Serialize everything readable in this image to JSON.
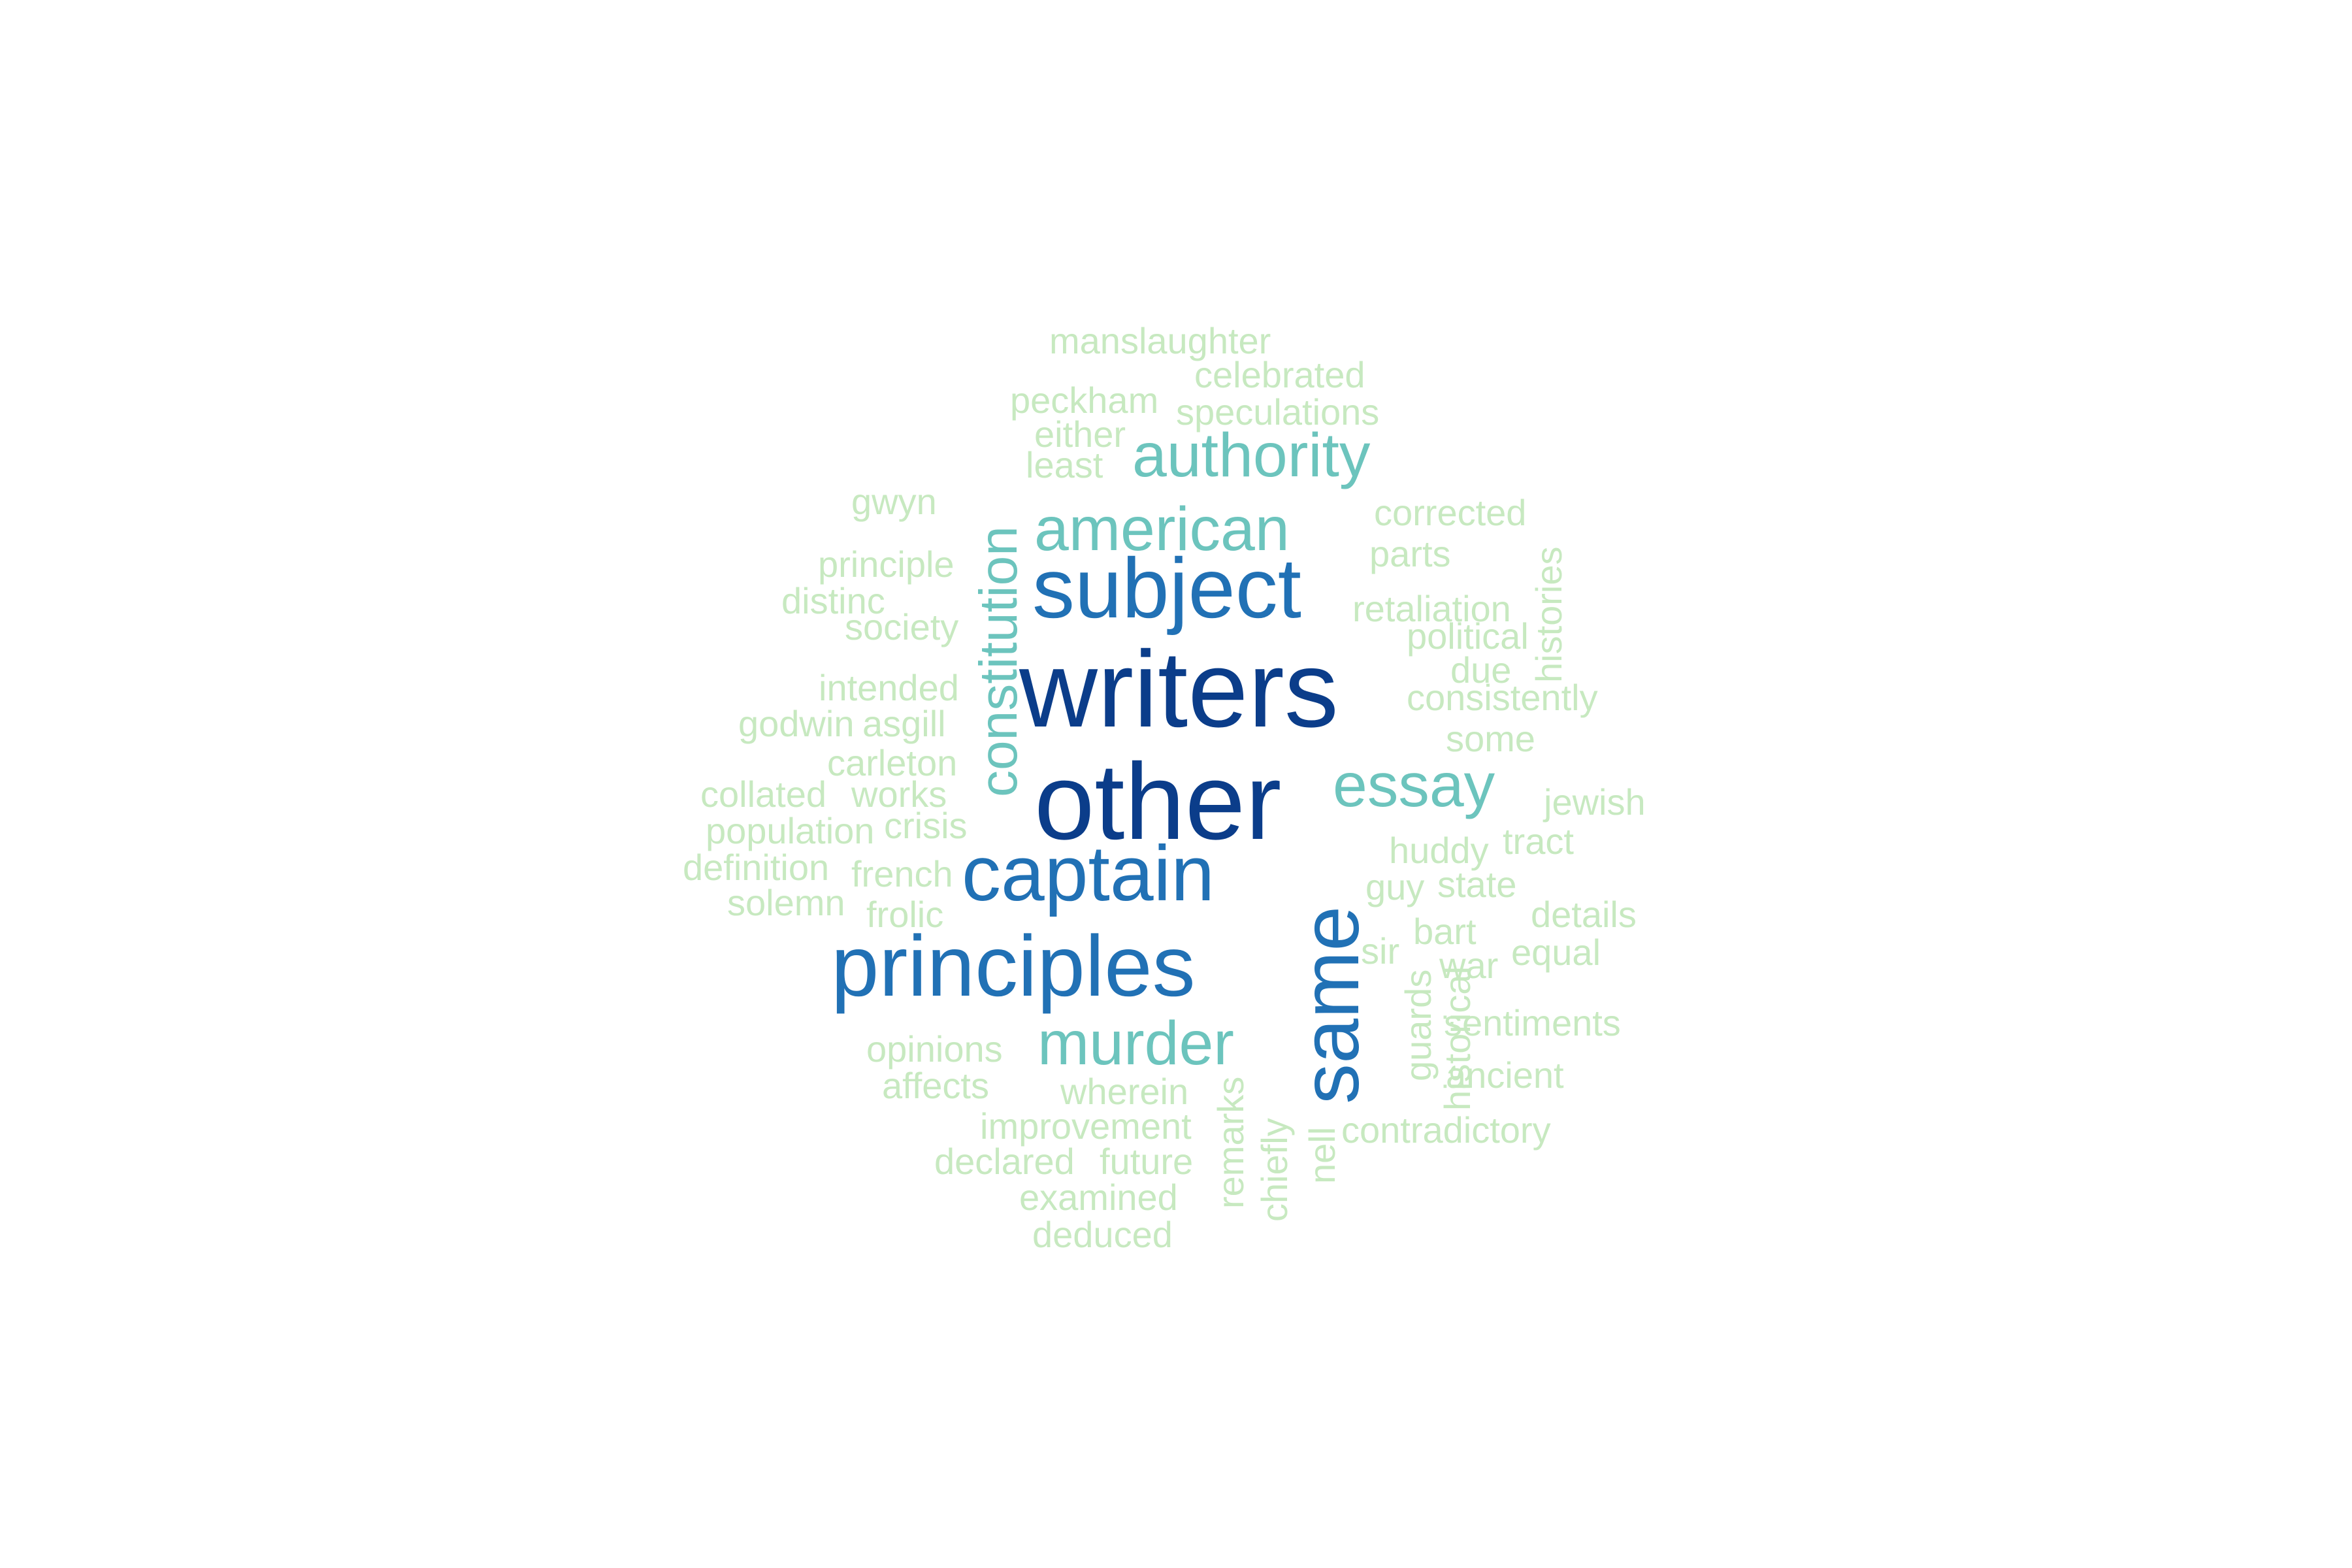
{
  "colors": {
    "tier1": "#0b3d8a",
    "tier2": "#2171b5",
    "tier3": "#6cc4bd",
    "tier4": "#c7e9c0"
  },
  "words": [
    {
      "text": "writers",
      "tier": 1
    },
    {
      "text": "other",
      "tier": 1
    },
    {
      "text": "subject",
      "tier": 2
    },
    {
      "text": "captain",
      "tier": 2
    },
    {
      "text": "principles",
      "tier": 2
    },
    {
      "text": "same",
      "tier": 2
    },
    {
      "text": "authority",
      "tier": 3
    },
    {
      "text": "american",
      "tier": 3
    },
    {
      "text": "constitution",
      "tier": 3
    },
    {
      "text": "essay",
      "tier": 3
    },
    {
      "text": "murder",
      "tier": 3
    },
    {
      "text": "manslaughter",
      "tier": 4
    },
    {
      "text": "celebrated",
      "tier": 4
    },
    {
      "text": "peckham",
      "tier": 4
    },
    {
      "text": "speculations",
      "tier": 4
    },
    {
      "text": "either",
      "tier": 4
    },
    {
      "text": "least",
      "tier": 4
    },
    {
      "text": "gwyn",
      "tier": 4
    },
    {
      "text": "corrected",
      "tier": 4
    },
    {
      "text": "parts",
      "tier": 4
    },
    {
      "text": "principle",
      "tier": 4
    },
    {
      "text": "distinc",
      "tier": 4
    },
    {
      "text": "society",
      "tier": 4
    },
    {
      "text": "retaliation",
      "tier": 4
    },
    {
      "text": "political",
      "tier": 4
    },
    {
      "text": "histories",
      "tier": 4
    },
    {
      "text": "due",
      "tier": 4
    },
    {
      "text": "intended",
      "tier": 4
    },
    {
      "text": "consistently",
      "tier": 4
    },
    {
      "text": "godwin",
      "tier": 4
    },
    {
      "text": "asgill",
      "tier": 4
    },
    {
      "text": "some",
      "tier": 4
    },
    {
      "text": "carleton",
      "tier": 4
    },
    {
      "text": "collated",
      "tier": 4
    },
    {
      "text": "works",
      "tier": 4
    },
    {
      "text": "jewish",
      "tier": 4
    },
    {
      "text": "population",
      "tier": 4
    },
    {
      "text": "crisis",
      "tier": 4
    },
    {
      "text": "tract",
      "tier": 4
    },
    {
      "text": "huddy",
      "tier": 4
    },
    {
      "text": "definition",
      "tier": 4
    },
    {
      "text": "french",
      "tier": 4
    },
    {
      "text": "guy",
      "tier": 4
    },
    {
      "text": "state",
      "tier": 4
    },
    {
      "text": "solemn",
      "tier": 4
    },
    {
      "text": "frolic",
      "tier": 4
    },
    {
      "text": "details",
      "tier": 4
    },
    {
      "text": "bart",
      "tier": 4
    },
    {
      "text": "sir",
      "tier": 4
    },
    {
      "text": "war",
      "tier": 4
    },
    {
      "text": "equal",
      "tier": 4
    },
    {
      "text": "guards",
      "tier": 4
    },
    {
      "text": "historical",
      "tier": 4
    },
    {
      "text": "sentiments",
      "tier": 4
    },
    {
      "text": "opinions",
      "tier": 4
    },
    {
      "text": "affects",
      "tier": 4
    },
    {
      "text": "ancient",
      "tier": 4
    },
    {
      "text": "wherein",
      "tier": 4
    },
    {
      "text": "remarks",
      "tier": 4
    },
    {
      "text": "improvement",
      "tier": 4
    },
    {
      "text": "chiefly",
      "tier": 4
    },
    {
      "text": "nell",
      "tier": 4
    },
    {
      "text": "contradictory",
      "tier": 4
    },
    {
      "text": "declared",
      "tier": 4
    },
    {
      "text": "future",
      "tier": 4
    },
    {
      "text": "examined",
      "tier": 4
    },
    {
      "text": "deduced",
      "tier": 4
    }
  ]
}
